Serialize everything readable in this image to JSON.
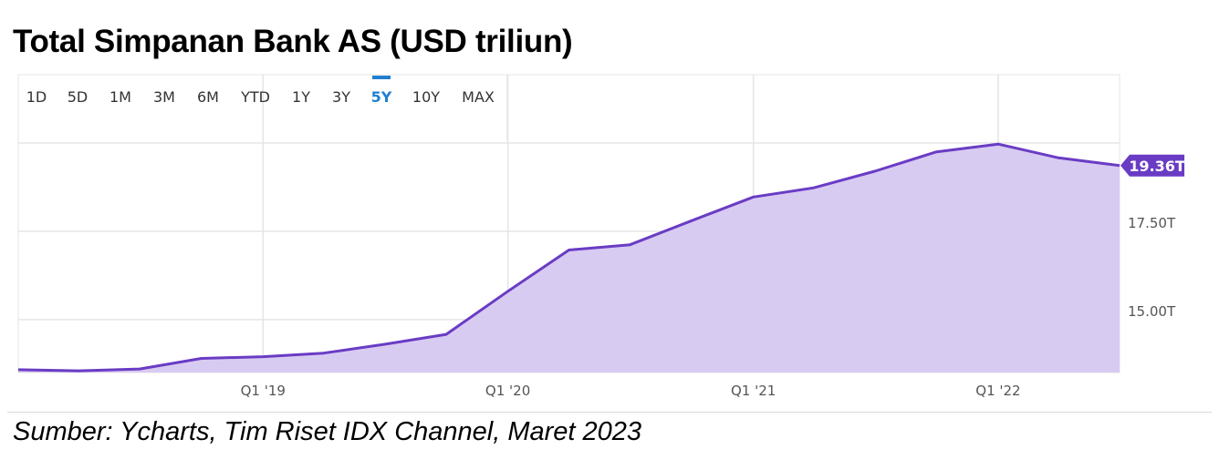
{
  "title": "Total Simpanan Bank AS (USD triliun)",
  "source": "Sumber: Ycharts, Tim Riset IDX Channel, Maret 2023",
  "range_buttons": [
    "1D",
    "5D",
    "1M",
    "3M",
    "6M",
    "YTD",
    "1Y",
    "3Y",
    "5Y",
    "10Y",
    "MAX"
  ],
  "selected_range": "5Y",
  "colors": {
    "line": "#6a3cc4",
    "fill": "#d8cbf2",
    "selected": "#1f7fd1",
    "badge": "#6a3cc4",
    "grid": "#e5e5e5"
  },
  "chart_data": {
    "type": "area",
    "title": "Total Simpanan Bank AS (USD triliun)",
    "xlabel": "",
    "ylabel": "",
    "x_ticks": [
      "Q1 '19",
      "Q1 '20",
      "Q1 '21",
      "Q1 '22"
    ],
    "y_ticks": [
      {
        "value": 15.0,
        "label": "15.00T"
      },
      {
        "value": 17.5,
        "label": "17.50T"
      }
    ],
    "ylim": [
      13.5,
      20.0
    ],
    "grid": true,
    "last_value_label": "19.36T",
    "series": [
      {
        "values": [
          {
            "x": "2018-01-01",
            "y": 13.58
          },
          {
            "x": "2018-04-01",
            "y": 13.55
          },
          {
            "x": "2018-07-01",
            "y": 13.6
          },
          {
            "x": "2018-10-01",
            "y": 13.9
          },
          {
            "x": "2019-01-01",
            "y": 13.95
          },
          {
            "x": "2019-04-01",
            "y": 14.05
          },
          {
            "x": "2019-07-01",
            "y": 14.3
          },
          {
            "x": "2019-10-01",
            "y": 14.58
          },
          {
            "x": "2020-01-01",
            "y": 15.8
          },
          {
            "x": "2020-04-01",
            "y": 16.97
          },
          {
            "x": "2020-07-01",
            "y": 17.12
          },
          {
            "x": "2020-10-01",
            "y": 17.8
          },
          {
            "x": "2021-01-01",
            "y": 18.47
          },
          {
            "x": "2021-04-01",
            "y": 18.73
          },
          {
            "x": "2021-07-01",
            "y": 19.2
          },
          {
            "x": "2021-10-01",
            "y": 19.75
          },
          {
            "x": "2022-01-01",
            "y": 19.97
          },
          {
            "x": "2022-04-01",
            "y": 19.58
          },
          {
            "x": "2022-07-01",
            "y": 19.36
          }
        ]
      }
    ]
  }
}
